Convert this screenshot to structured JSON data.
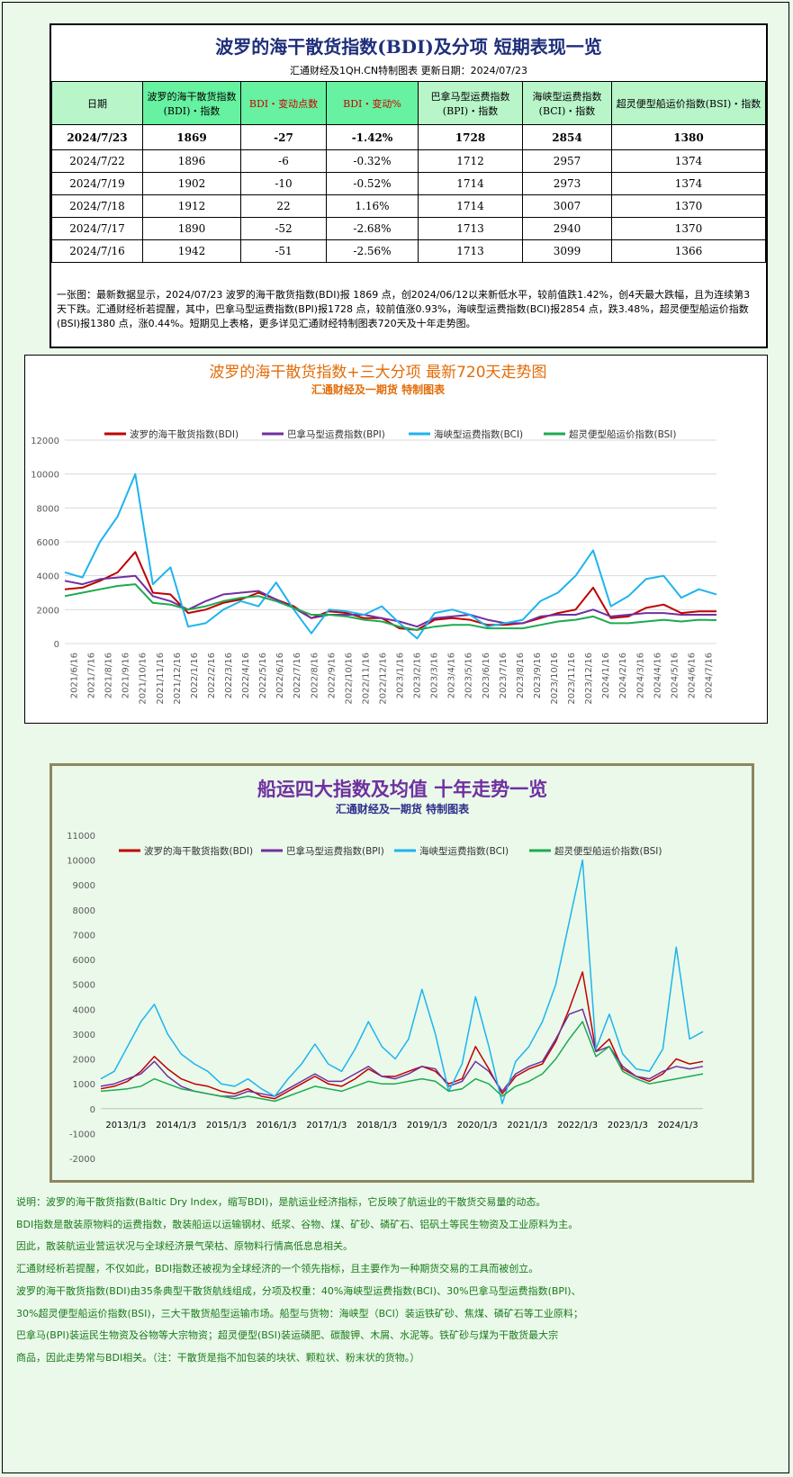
{
  "table": {
    "title": "波罗的海干散货指数(BDI)及分项  短期表现一览",
    "subtitle": "汇通财经及1QH.CN特制图表      更新日期：2024/07/23",
    "headers": [
      "日期",
      "波罗的海干散货指数(BDI)・指数",
      "BDI・变动点数",
      "BDI・变动%",
      "巴拿马型运费指数(BPI)・指数",
      "海峡型运费指数(BCI)・指数",
      "超灵便型船运价指数(BSI)・指数"
    ],
    "rows": [
      [
        "2024/7/23",
        "1869",
        "-27",
        "-1.42%",
        "1728",
        "2854",
        "1380"
      ],
      [
        "2024/7/22",
        "1896",
        "-6",
        "-0.32%",
        "1712",
        "2957",
        "1374"
      ],
      [
        "2024/7/19",
        "1902",
        "-10",
        "-0.52%",
        "1714",
        "2973",
        "1374"
      ],
      [
        "2024/7/18",
        "1912",
        "22",
        "1.16%",
        "1714",
        "3007",
        "1370"
      ],
      [
        "2024/7/17",
        "1890",
        "-52",
        "-2.68%",
        "1713",
        "2940",
        "1370"
      ],
      [
        "2024/7/16",
        "1942",
        "-51",
        "-2.56%",
        "1713",
        "3099",
        "1366"
      ]
    ],
    "note": "一张图：最新数据显示，2024/07/23 波罗的海干散货指数(BDI)报 1869 点，创2024/06/12以来新低水平，较前值跌1.42%，创4天最大跌幅，且为连续第3天下跌。汇通财经析若提醒，其中，巴拿马型运费指数(BPI)报1728 点，较前值涨0.93%，海峡型运费指数(BCI)报2854 点，跌3.48%，超灵便型船运价指数(BSI)报1380 点，涨0.44%。短期见上表格，更多详见汇通财经特制图表720天及十年走势图。"
  },
  "chart_data": [
    {
      "type": "line",
      "title": "波罗的海干散货指数+三大分项  最新720天走势图",
      "subtitle": "汇通财经及一期货  特制图表",
      "ylim": [
        0,
        12000
      ],
      "yticks": [
        0,
        2000,
        4000,
        6000,
        8000,
        10000,
        12000
      ],
      "x_labels": [
        "2021/6/16",
        "2021/7/16",
        "2021/8/16",
        "2021/9/16",
        "2021/10/16",
        "2021/11/16",
        "2021/12/16",
        "2022/1/16",
        "2022/2/16",
        "2022/3/16",
        "2022/4/16",
        "2022/5/16",
        "2022/6/16",
        "2022/7/16",
        "2022/8/16",
        "2022/9/16",
        "2022/10/16",
        "2022/11/16",
        "2022/12/16",
        "2023/1/16",
        "2023/2/16",
        "2023/3/16",
        "2023/4/16",
        "2023/5/16",
        "2023/6/16",
        "2023/7/16",
        "2023/8/16",
        "2023/9/16",
        "2023/10/16",
        "2023/11/16",
        "2023/12/16",
        "2024/1/16",
        "2024/2/16",
        "2024/3/16",
        "2024/4/16",
        "2024/5/16",
        "2024/6/16",
        "2024/7/16"
      ],
      "legend_position": "top",
      "grid": true,
      "series": [
        {
          "name": "波罗的海干散货指数(BDI)",
          "color": "#c00000",
          "values": [
            3200,
            3300,
            3700,
            4200,
            5400,
            3000,
            2900,
            1800,
            2000,
            2400,
            2600,
            3000,
            2600,
            2200,
            1500,
            1900,
            1800,
            1500,
            1500,
            900,
            800,
            1400,
            1500,
            1400,
            1100,
            1100,
            1200,
            1500,
            1800,
            2000,
            3300,
            1500,
            1600,
            2100,
            2300,
            1800,
            1900,
            1900
          ]
        },
        {
          "name": "巴拿马型运费指数(BPI)",
          "color": "#7030a0",
          "values": [
            3700,
            3500,
            3800,
            3900,
            4000,
            2800,
            2500,
            2000,
            2500,
            2900,
            3000,
            3100,
            2600,
            2100,
            1500,
            1700,
            1700,
            1700,
            1500,
            1300,
            1000,
            1500,
            1600,
            1700,
            1400,
            1200,
            1200,
            1600,
            1700,
            1700,
            2000,
            1600,
            1700,
            1800,
            1800,
            1700,
            1700,
            1700
          ]
        },
        {
          "name": "海峡型运费指数(BCI)",
          "color": "#1eb4ee",
          "values": [
            4200,
            3900,
            6000,
            7500,
            10000,
            3500,
            4500,
            1000,
            1200,
            2000,
            2500,
            2200,
            3600,
            2000,
            600,
            2000,
            1900,
            1700,
            2200,
            1200,
            300,
            1800,
            2000,
            1700,
            1000,
            1200,
            1400,
            2500,
            3000,
            4000,
            5500,
            2200,
            2800,
            3800,
            4000,
            2700,
            3200,
            2900
          ]
        },
        {
          "name": "超灵便型船运价指数(BSI)",
          "color": "#1daa50",
          "values": [
            2800,
            3000,
            3200,
            3400,
            3500,
            2400,
            2300,
            2000,
            2200,
            2500,
            2700,
            2800,
            2500,
            2100,
            1700,
            1700,
            1600,
            1400,
            1300,
            1000,
            800,
            1000,
            1100,
            1100,
            900,
            900,
            900,
            1100,
            1300,
            1400,
            1600,
            1200,
            1200,
            1300,
            1400,
            1300,
            1400,
            1380
          ]
        }
      ]
    },
    {
      "type": "line",
      "title": "船运四大指数及均值 十年走势一览",
      "subtitle": "汇通财经及一期货 特制图表",
      "ylim": [
        -2000,
        11000
      ],
      "yticks": [
        -2000,
        -1000,
        0,
        1000,
        2000,
        3000,
        4000,
        5000,
        6000,
        7000,
        8000,
        9000,
        10000,
        11000
      ],
      "x_labels": [
        "2013/1/3",
        "2014/1/3",
        "2015/1/3",
        "2016/1/3",
        "2017/1/3",
        "2018/1/3",
        "2019/1/3",
        "2020/1/3",
        "2021/1/3",
        "2022/1/3",
        "2023/1/3",
        "2024/1/3"
      ],
      "legend_position": "top",
      "grid": false,
      "series": [
        {
          "name": "波罗的海干散货指数(BDI)",
          "color": "#c00000",
          "values": [
            800,
            900,
            1100,
            1500,
            2100,
            1600,
            1200,
            1000,
            900,
            700,
            600,
            800,
            500,
            400,
            700,
            1000,
            1300,
            1000,
            900,
            1200,
            1600,
            1300,
            1300,
            1500,
            1700,
            1500,
            1000,
            1200,
            2500,
            1600,
            600,
            1300,
            1600,
            1800,
            2700,
            4000,
            5500,
            2300,
            2800,
            1600,
            1300,
            1100,
            1400,
            2000,
            1800,
            1900
          ]
        },
        {
          "name": "巴拿马型运费指数(BPI)",
          "color": "#7030a0",
          "values": [
            900,
            1000,
            1200,
            1400,
            1900,
            1300,
            900,
            700,
            600,
            500,
            500,
            700,
            600,
            500,
            800,
            1100,
            1400,
            1100,
            1100,
            1400,
            1700,
            1300,
            1200,
            1400,
            1700,
            1600,
            900,
            1100,
            1900,
            1500,
            700,
            1400,
            1700,
            1900,
            2800,
            3800,
            4000,
            2300,
            2500,
            1700,
            1300,
            1200,
            1500,
            1700,
            1600,
            1700
          ]
        },
        {
          "name": "海峡型运费指数(BCI)",
          "color": "#1eb4ee",
          "values": [
            1200,
            1500,
            2500,
            3500,
            4200,
            3000,
            2200,
            1800,
            1500,
            1000,
            900,
            1200,
            800,
            500,
            1200,
            1800,
            2600,
            1800,
            1500,
            2400,
            3500,
            2500,
            2000,
            2800,
            4800,
            3000,
            700,
            1800,
            4500,
            2500,
            200,
            1900,
            2500,
            3500,
            5000,
            7500,
            10000,
            2400,
            3800,
            2200,
            1600,
            1500,
            2400,
            6500,
            2800,
            3100
          ]
        },
        {
          "name": "超灵便型船运价指数(BSI)",
          "color": "#1daa50",
          "values": [
            700,
            750,
            800,
            900,
            1200,
            1000,
            800,
            700,
            600,
            500,
            400,
            500,
            400,
            300,
            500,
            700,
            900,
            800,
            700,
            900,
            1100,
            1000,
            1000,
            1100,
            1200,
            1100,
            700,
            800,
            1200,
            1000,
            500,
            900,
            1100,
            1400,
            2000,
            2800,
            3500,
            2100,
            2500,
            1500,
            1200,
            1000,
            1100,
            1200,
            1300,
            1400
          ]
        }
      ]
    }
  ],
  "description": [
    "说明：波罗的海干散货指数(Baltic Dry Index，缩写BDI)，是航运业经济指标，它反映了航运业的干散货交易量的动态。",
    "BDI指数是散装原物料的运费指数，散装船运以运输钢材、纸浆、谷物、煤、矿砂、磷矿石、铝矾土等民生物资及工业原料为主。",
    "因此，散装航运业营运状况与全球经济景气荣枯、原物料行情高低息息相关。",
    "汇通财经析若提醒，不仅如此，BDI指数还被视为全球经济的一个领先指标，且主要作为一种期货交易的工具而被创立。",
    "波罗的海干散货指数(BDI)由35条典型干散货航线组成，分项及权重：40%海峡型运费指数(BCI)、30%巴拿马型运费指数(BPI)、",
    "30%超灵便型船运价指数(BSI)，三大干散货船型运输市场。船型与货物：海峡型（BCI）装运铁矿砂、焦煤、磷矿石等工业原料；",
    "巴拿马(BPI)装运民生物资及谷物等大宗物资；超灵便型(BSI)装运磷肥、碳酸钾、木屑、水泥等。铁矿砂与煤为干散货最大宗",
    "商品，因此走势常与BDI相关。（注：干散货是指不加包装的块状、颗粒状、粉末状的货物。）"
  ],
  "colors": {
    "header_green": "#b8f5c8",
    "header_bright": "#66f2a0",
    "accent_title": "#1f2f7a",
    "chart1_title": "#e36c09",
    "chart2_title": "#7030a0",
    "desc_text": "#1a7a1a"
  }
}
